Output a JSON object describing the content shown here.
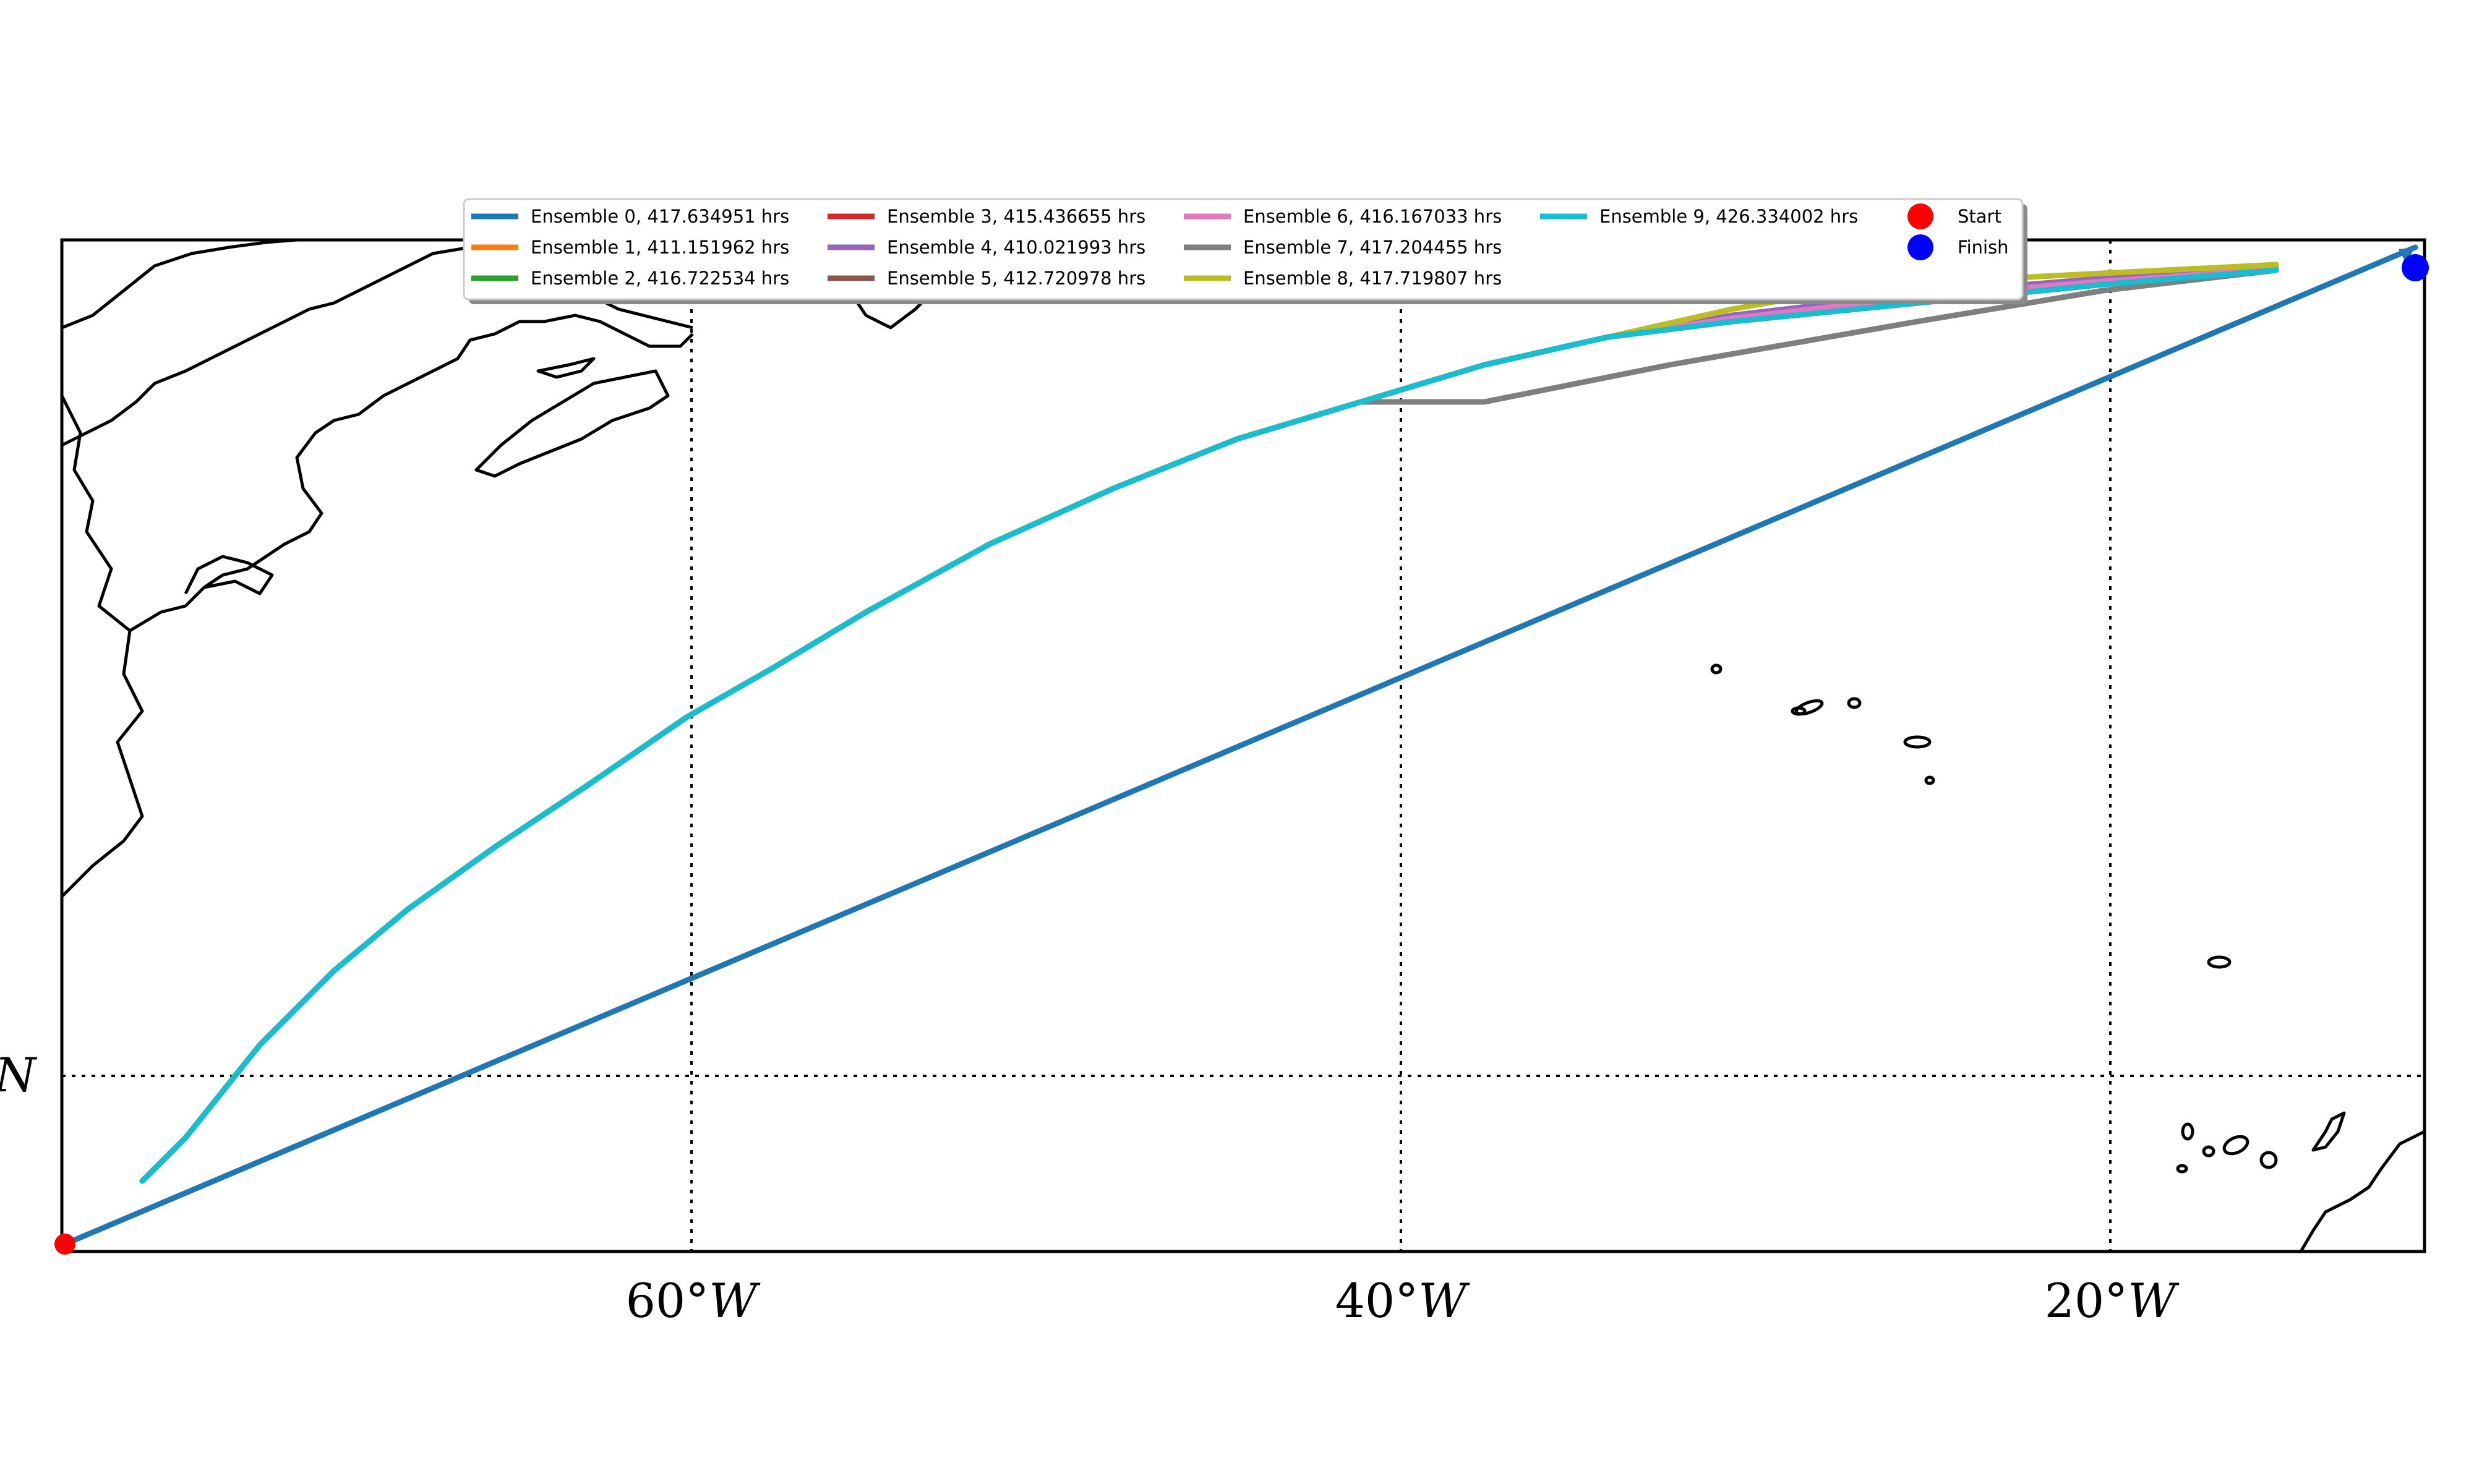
{
  "map": {
    "x_ticks": [
      {
        "lon": -60,
        "label_num": "60°",
        "label_dir": "W"
      },
      {
        "lon": -40,
        "label_num": "40°",
        "label_dir": "W"
      },
      {
        "lon": -20,
        "label_num": "20°",
        "label_dir": "W"
      }
    ],
    "y_ticks": [
      {
        "lat": 20,
        "label": "N"
      }
    ],
    "legend": {
      "routes": [
        {
          "label": "Ensemble 0, 417.634951 hrs",
          "color": "#1f77b4"
        },
        {
          "label": "Ensemble 1, 411.151962 hrs",
          "color": "#ff7f0e"
        },
        {
          "label": "Ensemble 2, 416.722534 hrs",
          "color": "#2ca02c"
        },
        {
          "label": "Ensemble 3, 415.436655 hrs",
          "color": "#d62728"
        },
        {
          "label": "Ensemble 4, 410.021993 hrs",
          "color": "#9467bd"
        },
        {
          "label": "Ensemble 5, 412.720978 hrs",
          "color": "#8c564b"
        },
        {
          "label": "Ensemble 6, 416.167033 hrs",
          "color": "#e377c2"
        },
        {
          "label": "Ensemble 7, 417.204455 hrs",
          "color": "#7f7f7f"
        },
        {
          "label": "Ensemble 8, 417.719807 hrs",
          "color": "#bcbd22"
        },
        {
          "label": "Ensemble 9, 426.334002 hrs",
          "color": "#17becf"
        }
      ],
      "markers": [
        {
          "label": "Start",
          "color": "#ff0000"
        },
        {
          "label": "Finish",
          "color": "#0000ff"
        }
      ]
    }
  }
}
